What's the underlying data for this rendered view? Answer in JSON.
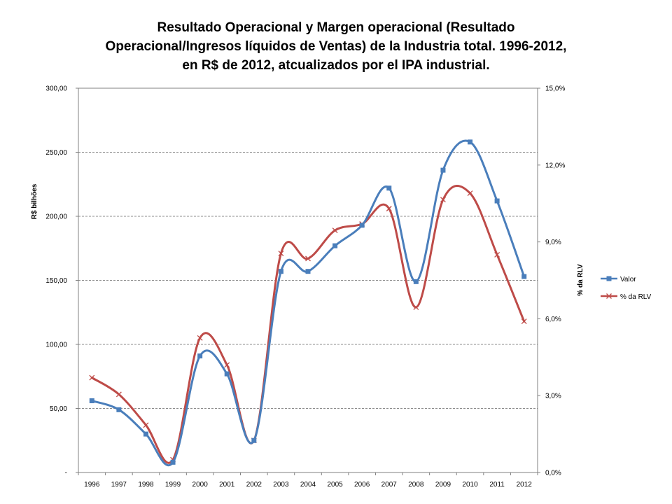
{
  "chart_data": {
    "type": "line",
    "title_lines": [
      "Resultado Operacional y Margen operacional (Resultado",
      "Operacional/Ingresos líquidos de Ventas) de la Industria total. 1996-2012,",
      "en R$ de 2012, atcualizados por el IPA industrial."
    ],
    "categories": [
      "1996",
      "1997",
      "1998",
      "1999",
      "2000",
      "2001",
      "2002",
      "2003",
      "2004",
      "2005",
      "2006",
      "2007",
      "2008",
      "2009",
      "2010",
      "2011",
      "2012"
    ],
    "ylabel_left": "R$ bilhões",
    "ylabel_right": "% da RLV",
    "ylim_left": [
      0,
      300
    ],
    "ylim_right": [
      0,
      15
    ],
    "yticks_left": [
      "-",
      "50,00",
      "100,00",
      "150,00",
      "200,00",
      "250,00",
      "300,00"
    ],
    "yticks_right": [
      "0,0%",
      "3,0%",
      "6,0%",
      "9,0%",
      "12,0%",
      "15,0%"
    ],
    "grid": "horizontal major gridlines",
    "legend_position": "right",
    "series": [
      {
        "name": "Valor",
        "axis": "left",
        "color": "#4a7ebb",
        "marker": "square",
        "values": [
          56,
          49,
          30,
          8,
          91,
          77,
          25,
          157,
          157,
          177,
          193,
          222,
          149,
          236,
          258,
          212,
          153
        ]
      },
      {
        "name": "% da RLV",
        "axis": "right",
        "color": "#be4b48",
        "marker": "x",
        "values": [
          3.7,
          3.05,
          1.85,
          0.5,
          5.25,
          4.2,
          1.25,
          8.55,
          8.35,
          9.45,
          9.7,
          10.3,
          6.45,
          10.65,
          10.9,
          8.5,
          5.9
        ]
      }
    ]
  }
}
